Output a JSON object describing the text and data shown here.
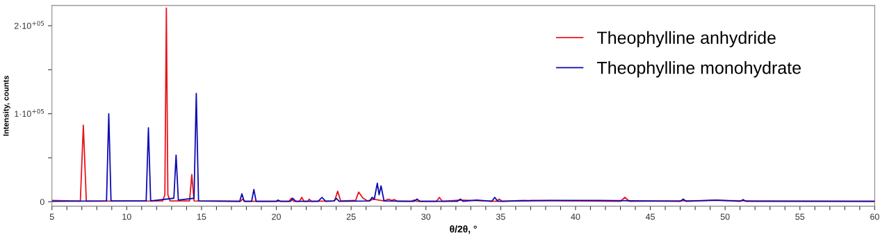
{
  "chart_data": {
    "type": "line",
    "xlabel": "θ/2θ, °",
    "ylabel": "Intensity, counts",
    "xlim": [
      5,
      60
    ],
    "ylim": [
      -5000,
      223000
    ],
    "xticks": [
      5,
      {
        "value": 6,
        "label": null
      },
      {
        "value": 7,
        "label": null
      },
      {
        "value": 8,
        "label": null
      },
      {
        "value": 9,
        "label": null
      },
      10,
      {
        "value": 11,
        "label": null
      },
      {
        "value": 12,
        "label": null
      },
      {
        "value": 13,
        "label": null
      },
      {
        "value": 14,
        "label": null
      },
      15,
      {
        "value": 16,
        "label": null
      },
      {
        "value": 17,
        "label": null
      },
      {
        "value": 18,
        "label": null
      },
      {
        "value": 19,
        "label": null
      },
      20,
      {
        "value": 21,
        "label": null
      },
      {
        "value": 22,
        "label": null
      },
      {
        "value": 23,
        "label": null
      },
      {
        "value": 24,
        "label": null
      },
      25,
      {
        "value": 26,
        "label": null
      },
      {
        "value": 27,
        "label": null
      },
      {
        "value": 28,
        "label": null
      },
      {
        "value": 29,
        "label": null
      },
      30,
      {
        "value": 31,
        "label": null
      },
      {
        "value": 32,
        "label": null
      },
      {
        "value": 33,
        "label": null
      },
      {
        "value": 34,
        "label": null
      },
      35,
      {
        "value": 36,
        "label": null
      },
      {
        "value": 37,
        "label": null
      },
      {
        "value": 38,
        "label": null
      },
      {
        "value": 39,
        "label": null
      },
      40,
      {
        "value": 41,
        "label": null
      },
      {
        "value": 42,
        "label": null
      },
      {
        "value": 43,
        "label": null
      },
      {
        "value": 44,
        "label": null
      },
      45,
      {
        "value": 46,
        "label": null
      },
      {
        "value": 47,
        "label": null
      },
      {
        "value": 48,
        "label": null
      },
      {
        "value": 49,
        "label": null
      },
      50,
      {
        "value": 51,
        "label": null
      },
      {
        "value": 52,
        "label": null
      },
      {
        "value": 53,
        "label": null
      },
      {
        "value": 54,
        "label": null
      },
      55,
      {
        "value": 56,
        "label": null
      },
      {
        "value": 57,
        "label": null
      },
      {
        "value": 58,
        "label": null
      },
      {
        "value": 59,
        "label": null
      },
      60
    ],
    "yticks": [
      0,
      {
        "value": 50000,
        "label": null
      },
      {
        "value": 100000,
        "label": "1·10$^{+05}$"
      },
      {
        "value": 150000,
        "label": null
      },
      {
        "value": 200000,
        "label": "2·10$^{+05}$"
      }
    ],
    "grid": false,
    "legend": "top right",
    "marker": "none",
    "line_style": "solid",
    "series": [
      {
        "name": "Theophylline monohydrate",
        "color": "#0a0ab4",
        "x": [
          5,
          8.65,
          8.8,
          8.95,
          11.3,
          11.45,
          11.6,
          13.15,
          13.3,
          13.45,
          14.5,
          14.65,
          14.8,
          17.55,
          17.7,
          17.85,
          18.35,
          18.5,
          18.65,
          20.0,
          20.1,
          20.3,
          20.95,
          21.1,
          21.3,
          22.8,
          23.05,
          23.3,
          23.85,
          24.0,
          24.2,
          26.25,
          26.4,
          26.55,
          26.75,
          26.87,
          27.0,
          27.2,
          29.2,
          29.4,
          29.6,
          32.1,
          32.3,
          32.5,
          33.4,
          34.4,
          34.6,
          34.8,
          38.4,
          41.5,
          47.0,
          47.2,
          47.4,
          49.4,
          51.0,
          51.2,
          51.4,
          60
        ],
        "values": [
          500,
          1000,
          100000,
          1000,
          1000,
          84000,
          1000,
          4000,
          53000,
          2000,
          4000,
          123000,
          1000,
          500,
          9000,
          500,
          500,
          14000,
          500,
          500,
          2000,
          500,
          500,
          4000,
          500,
          500,
          5000,
          500,
          1000,
          4000,
          500,
          1000,
          5000,
          3000,
          21000,
          8000,
          18000,
          1000,
          500,
          3000,
          500,
          500,
          3000,
          500,
          2000,
          500,
          5000,
          500,
          1500,
          1500,
          500,
          3000,
          500,
          2000,
          500,
          2500,
          500,
          500
        ]
      },
      {
        "name": "Theophylline anhydride",
        "color": "#e8141c",
        "x": [
          5,
          6.9,
          7.1,
          7.3,
          12.4,
          12.55,
          12.65,
          12.75,
          12.9,
          14.2,
          14.35,
          14.5,
          17.6,
          17.75,
          17.9,
          20.85,
          21.0,
          21.15,
          21.55,
          21.7,
          21.85,
          22.1,
          22.2,
          22.35,
          23.9,
          24.1,
          24.3,
          25.3,
          25.5,
          25.8,
          26.1,
          26.5,
          27.2,
          27.5,
          27.7,
          27.9,
          28.1,
          29.0,
          29.2,
          29.4,
          30.7,
          30.9,
          31.1,
          32.3,
          34.7,
          34.9,
          35.1,
          36.5,
          43.0,
          43.3,
          43.6,
          49.3,
          52,
          60
        ],
        "values": [
          1500,
          800,
          87000,
          800,
          1000,
          8000,
          220000,
          8000,
          1000,
          1000,
          31000,
          1000,
          500,
          3000,
          500,
          500,
          4000,
          500,
          500,
          5000,
          500,
          500,
          3000,
          500,
          1000,
          12000,
          1000,
          1500,
          11000,
          4000,
          1000,
          3000,
          1000,
          3000,
          1500,
          2500,
          500,
          500,
          2000,
          500,
          500,
          5000,
          500,
          2000,
          500,
          3000,
          500,
          1500,
          500,
          5000,
          500,
          1500,
          1000,
          500
        ]
      }
    ]
  }
}
